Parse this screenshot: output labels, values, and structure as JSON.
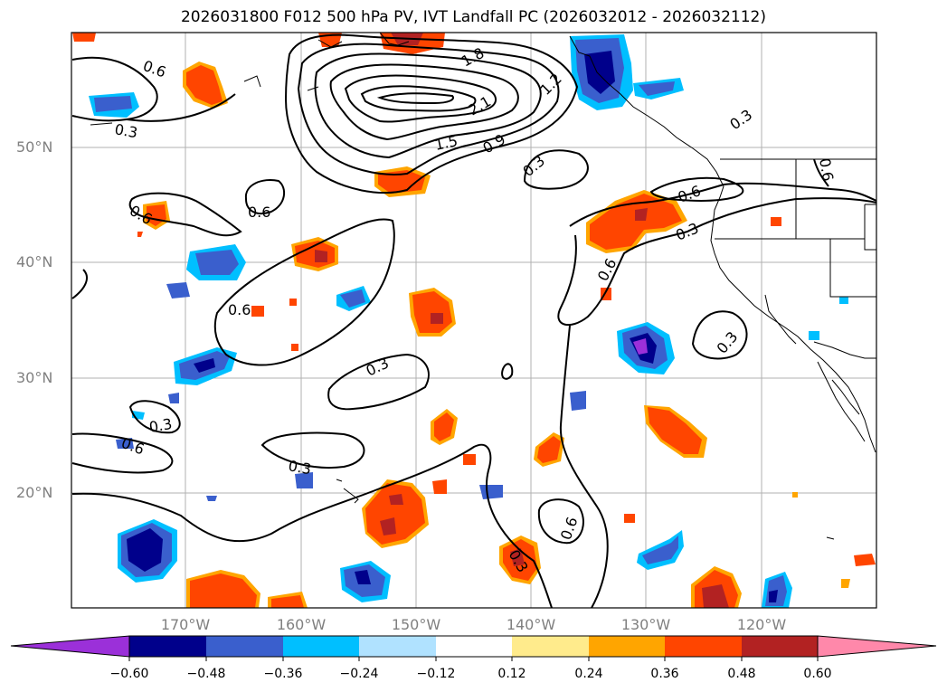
{
  "title": "2026031800 F012 500 hPa PV, IVT Landfall PC (2026032012 - 2026032112)",
  "lat_labels": [
    "50°N",
    "40°N",
    "30°N",
    "20°N"
  ],
  "lon_labels": [
    "170°W",
    "160°W",
    "150°W",
    "140°W",
    "130°W",
    "120°W"
  ],
  "contour_labels": [
    "0.6",
    "0.3",
    "1.8",
    "2.1",
    "1.5",
    "0.9",
    "1.2",
    "0.3",
    "0.3",
    "0.6",
    "0.6",
    "0.6",
    "0.3",
    "0.6",
    "0.6",
    "0.3",
    "0.3",
    "0.3",
    "0.6",
    "0.3",
    "0.6",
    "0.3",
    "0.6",
    "0.3",
    "0.6"
  ],
  "colorbar": {
    "ticks": [
      "−0.60",
      "−0.48",
      "−0.36",
      "−0.24",
      "−0.12",
      "0.12",
      "0.24",
      "0.36",
      "0.48",
      "0.60"
    ],
    "colors": [
      "#9b30d9",
      "#00008b",
      "#3a5fcd",
      "#00bfff",
      "#b0e2ff",
      "#ffffff",
      "#ffeb8c",
      "#ffa500",
      "#ff4500",
      "#b22222",
      "#ff88aa"
    ]
  }
}
